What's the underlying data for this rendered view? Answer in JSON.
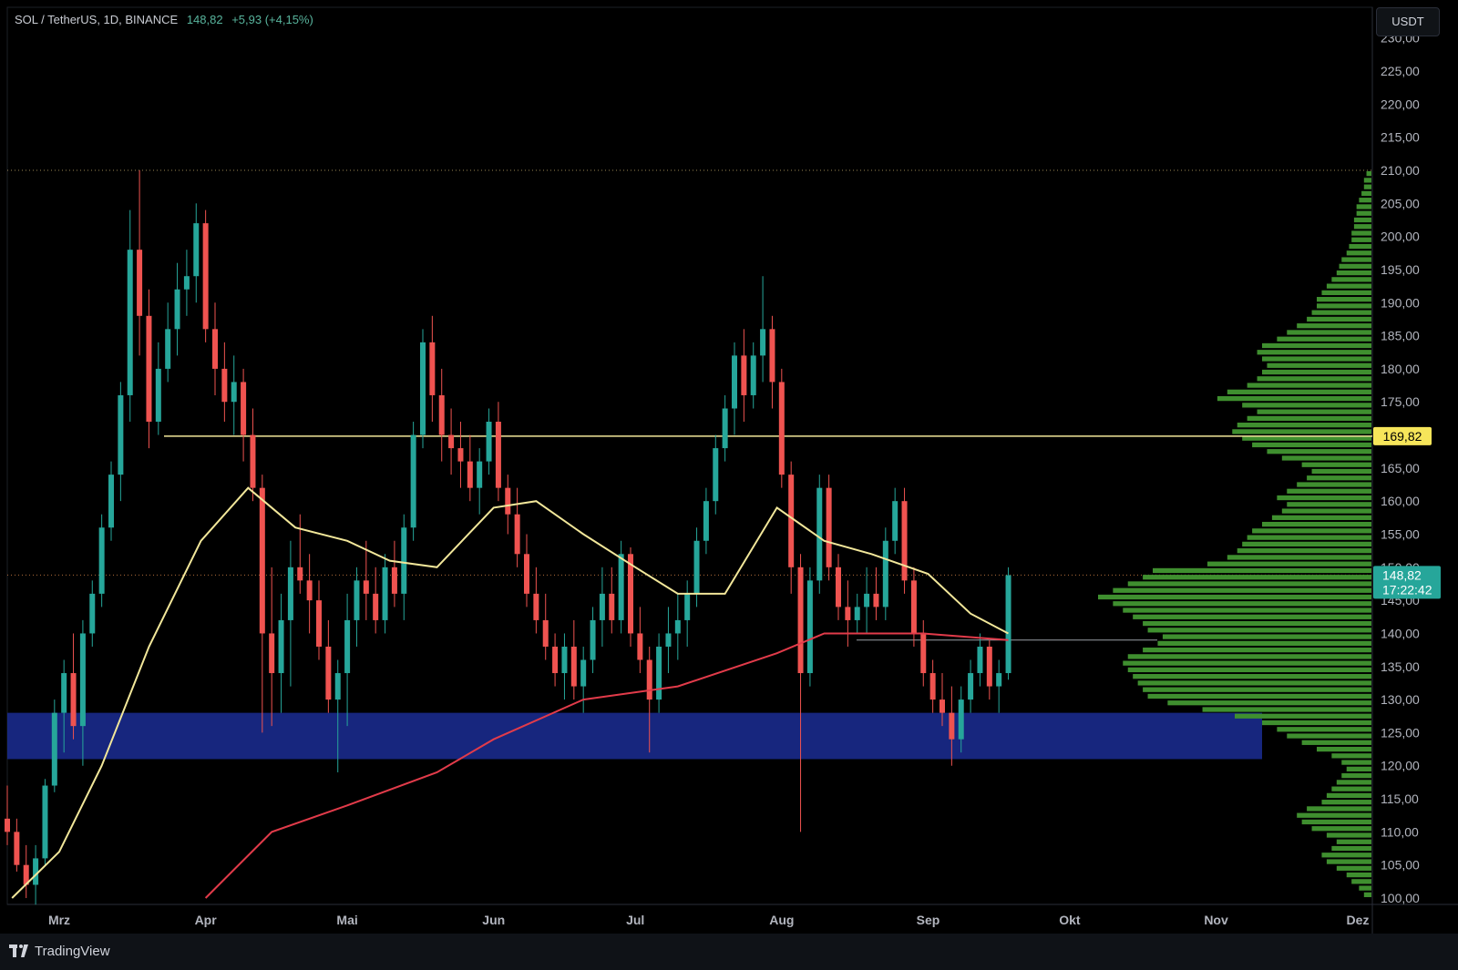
{
  "header": {
    "symbol": "SOL / TetherUS, 1D, BINANCE",
    "last": "148,82",
    "change": "+5,93 (+4,15%)"
  },
  "currency_button": "USDT",
  "footer": {
    "brand": "TradingView"
  },
  "colors": {
    "up": "#26a69a",
    "down": "#ef5350",
    "ma_fast": "#f2e79a",
    "ma_slow": "#e23b4a",
    "zone": "#1a2a8c",
    "volume_profile": "#3f8f2f",
    "level_line": "#f2e79a",
    "price_tag": "#26a69a",
    "level_tag": "#f6e55a"
  },
  "chart_data": {
    "type": "candlestick",
    "y_ticks": [
      "100,00",
      "105,00",
      "110,00",
      "115,00",
      "120,00",
      "125,00",
      "130,00",
      "135,00",
      "140,00",
      "145,00",
      "150,00",
      "155,00",
      "160,00",
      "165,00",
      "170,00",
      "175,00",
      "180,00",
      "185,00",
      "190,00",
      "195,00",
      "200,00",
      "205,00",
      "210,00",
      "215,00",
      "220,00",
      "225,00",
      "230,00"
    ],
    "y_range": [
      100,
      230
    ],
    "x_labels": [
      "Mrz",
      "Apr",
      "Mai",
      "Jun",
      "Jul",
      "Aug",
      "Sep",
      "Okt",
      "Nov",
      "Dez"
    ],
    "x_range": [
      "2024-02-19",
      "2024-12-01"
    ],
    "current_price": {
      "value": 148.82,
      "label": "148,82",
      "countdown": "17:22:42"
    },
    "level_line": {
      "value": 169.82,
      "label": "169,82"
    },
    "support_zone": {
      "from": 121,
      "to": 128
    },
    "moving_averages": [
      {
        "points": [
          [
            "2024-02-20",
            100
          ],
          [
            "2024-03-01",
            107
          ],
          [
            "2024-03-10",
            120
          ],
          [
            "2024-03-20",
            138
          ],
          [
            "2024-03-31",
            154
          ],
          [
            "2024-04-10",
            162
          ],
          [
            "2024-04-20",
            156
          ],
          [
            "2024-05-01",
            154
          ],
          [
            "2024-05-10",
            151
          ],
          [
            "2024-05-20",
            150
          ],
          [
            "2024-06-01",
            159
          ],
          [
            "2024-06-10",
            160
          ],
          [
            "2024-06-20",
            155
          ],
          [
            "2024-07-01",
            150
          ],
          [
            "2024-07-10",
            146
          ],
          [
            "2024-07-20",
            146
          ],
          [
            "2024-07-31",
            159
          ],
          [
            "2024-08-10",
            154
          ],
          [
            "2024-08-20",
            152
          ],
          [
            "2024-09-01",
            149
          ],
          [
            "2024-09-10",
            143
          ],
          [
            "2024-09-18",
            140
          ]
        ]
      },
      {
        "points": [
          [
            "2024-04-01",
            100
          ],
          [
            "2024-04-15",
            110
          ],
          [
            "2024-05-01",
            114
          ],
          [
            "2024-05-20",
            119
          ],
          [
            "2024-06-01",
            124
          ],
          [
            "2024-06-20",
            130
          ],
          [
            "2024-07-10",
            132
          ],
          [
            "2024-07-31",
            137
          ],
          [
            "2024-08-10",
            140
          ],
          [
            "2024-08-31",
            140
          ],
          [
            "2024-09-18",
            139
          ]
        ]
      }
    ],
    "candles": [
      [
        "2024-02-19",
        112,
        117,
        108,
        110
      ],
      [
        "2024-02-21",
        110,
        112,
        104,
        105
      ],
      [
        "2024-02-23",
        105,
        108,
        100,
        102
      ],
      [
        "2024-02-25",
        102,
        108,
        99,
        106
      ],
      [
        "2024-02-27",
        106,
        118,
        105,
        117
      ],
      [
        "2024-02-29",
        117,
        130,
        116,
        128
      ],
      [
        "2024-03-02",
        128,
        136,
        122,
        134
      ],
      [
        "2024-03-04",
        134,
        140,
        124,
        126
      ],
      [
        "2024-03-06",
        126,
        142,
        120,
        140
      ],
      [
        "2024-03-08",
        140,
        148,
        138,
        146
      ],
      [
        "2024-03-10",
        146,
        158,
        144,
        156
      ],
      [
        "2024-03-12",
        156,
        166,
        154,
        164
      ],
      [
        "2024-03-14",
        164,
        178,
        160,
        176
      ],
      [
        "2024-03-16",
        176,
        204,
        172,
        198
      ],
      [
        "2024-03-18",
        198,
        210,
        182,
        188
      ],
      [
        "2024-03-20",
        188,
        192,
        168,
        172
      ],
      [
        "2024-03-22",
        172,
        184,
        170,
        180
      ],
      [
        "2024-03-24",
        180,
        190,
        178,
        186
      ],
      [
        "2024-03-26",
        186,
        196,
        182,
        192
      ],
      [
        "2024-03-28",
        192,
        198,
        188,
        194
      ],
      [
        "2024-03-30",
        194,
        205,
        190,
        202
      ],
      [
        "2024-04-01",
        202,
        204,
        184,
        186
      ],
      [
        "2024-04-03",
        186,
        190,
        176,
        180
      ],
      [
        "2024-04-05",
        180,
        184,
        172,
        175
      ],
      [
        "2024-04-07",
        175,
        182,
        170,
        178
      ],
      [
        "2024-04-09",
        178,
        180,
        166,
        170
      ],
      [
        "2024-04-11",
        170,
        174,
        160,
        162
      ],
      [
        "2024-04-13",
        162,
        164,
        125,
        140
      ],
      [
        "2024-04-15",
        140,
        150,
        126,
        134
      ],
      [
        "2024-04-17",
        134,
        146,
        128,
        142
      ],
      [
        "2024-04-19",
        142,
        154,
        132,
        150
      ],
      [
        "2024-04-21",
        150,
        158,
        146,
        148
      ],
      [
        "2024-04-23",
        148,
        152,
        140,
        145
      ],
      [
        "2024-04-25",
        145,
        148,
        136,
        138
      ],
      [
        "2024-04-27",
        138,
        142,
        128,
        130
      ],
      [
        "2024-04-29",
        130,
        136,
        119,
        134
      ],
      [
        "2024-05-01",
        134,
        146,
        126,
        142
      ],
      [
        "2024-05-03",
        142,
        150,
        138,
        148
      ],
      [
        "2024-05-05",
        148,
        154,
        142,
        146
      ],
      [
        "2024-05-07",
        146,
        150,
        140,
        142
      ],
      [
        "2024-05-09",
        142,
        152,
        140,
        150
      ],
      [
        "2024-05-11",
        150,
        154,
        144,
        146
      ],
      [
        "2024-05-13",
        146,
        158,
        142,
        156
      ],
      [
        "2024-05-15",
        156,
        172,
        154,
        170
      ],
      [
        "2024-05-17",
        170,
        186,
        168,
        184
      ],
      [
        "2024-05-19",
        184,
        188,
        172,
        176
      ],
      [
        "2024-05-21",
        176,
        180,
        166,
        170
      ],
      [
        "2024-05-23",
        170,
        174,
        164,
        168
      ],
      [
        "2024-05-25",
        168,
        172,
        162,
        166
      ],
      [
        "2024-05-27",
        166,
        170,
        160,
        162
      ],
      [
        "2024-05-29",
        162,
        168,
        158,
        166
      ],
      [
        "2024-05-31",
        166,
        174,
        164,
        172
      ],
      [
        "2024-06-02",
        172,
        175,
        160,
        162
      ],
      [
        "2024-06-04",
        162,
        164,
        155,
        158
      ],
      [
        "2024-06-06",
        158,
        162,
        150,
        152
      ],
      [
        "2024-06-08",
        152,
        155,
        144,
        146
      ],
      [
        "2024-06-10",
        146,
        150,
        140,
        142
      ],
      [
        "2024-06-12",
        142,
        146,
        136,
        138
      ],
      [
        "2024-06-14",
        138,
        140,
        132,
        134
      ],
      [
        "2024-06-16",
        134,
        140,
        130,
        138
      ],
      [
        "2024-06-18",
        138,
        142,
        130,
        132
      ],
      [
        "2024-06-20",
        132,
        138,
        128,
        136
      ],
      [
        "2024-06-22",
        136,
        144,
        134,
        142
      ],
      [
        "2024-06-24",
        142,
        150,
        138,
        146
      ],
      [
        "2024-06-26",
        146,
        150,
        140,
        142
      ],
      [
        "2024-06-28",
        142,
        154,
        140,
        152
      ],
      [
        "2024-06-30",
        152,
        153,
        138,
        140
      ],
      [
        "2024-07-02",
        140,
        144,
        134,
        136
      ],
      [
        "2024-07-04",
        136,
        138,
        122,
        130
      ],
      [
        "2024-07-06",
        130,
        140,
        128,
        138
      ],
      [
        "2024-07-08",
        138,
        144,
        134,
        140
      ],
      [
        "2024-07-10",
        140,
        146,
        136,
        142
      ],
      [
        "2024-07-12",
        142,
        148,
        138,
        146
      ],
      [
        "2024-07-14",
        146,
        156,
        144,
        154
      ],
      [
        "2024-07-16",
        154,
        162,
        152,
        160
      ],
      [
        "2024-07-18",
        160,
        170,
        158,
        168
      ],
      [
        "2024-07-20",
        168,
        176,
        166,
        174
      ],
      [
        "2024-07-22",
        174,
        184,
        170,
        182
      ],
      [
        "2024-07-24",
        182,
        186,
        172,
        176
      ],
      [
        "2024-07-26",
        176,
        184,
        174,
        182
      ],
      [
        "2024-07-28",
        182,
        194,
        178,
        186
      ],
      [
        "2024-07-30",
        186,
        188,
        174,
        178
      ],
      [
        "2024-08-01",
        178,
        180,
        162,
        164
      ],
      [
        "2024-08-03",
        164,
        166,
        146,
        150
      ],
      [
        "2024-08-05",
        150,
        152,
        110,
        134
      ],
      [
        "2024-08-07",
        134,
        150,
        132,
        148
      ],
      [
        "2024-08-09",
        148,
        164,
        146,
        162
      ],
      [
        "2024-08-11",
        162,
        164,
        148,
        150
      ],
      [
        "2024-08-13",
        150,
        152,
        142,
        144
      ],
      [
        "2024-08-15",
        144,
        148,
        138,
        142
      ],
      [
        "2024-08-17",
        142,
        146,
        140,
        144
      ],
      [
        "2024-08-19",
        144,
        150,
        140,
        146
      ],
      [
        "2024-08-21",
        146,
        150,
        142,
        144
      ],
      [
        "2024-08-23",
        144,
        156,
        142,
        154
      ],
      [
        "2024-08-25",
        154,
        162,
        152,
        160
      ],
      [
        "2024-08-27",
        160,
        162,
        146,
        148
      ],
      [
        "2024-08-29",
        148,
        150,
        138,
        140
      ],
      [
        "2024-08-31",
        140,
        142,
        132,
        134
      ],
      [
        "2024-09-02",
        134,
        136,
        128,
        130
      ],
      [
        "2024-09-04",
        130,
        134,
        126,
        128
      ],
      [
        "2024-09-06",
        128,
        132,
        120,
        124
      ],
      [
        "2024-09-08",
        124,
        132,
        122,
        130
      ],
      [
        "2024-09-10",
        130,
        136,
        128,
        134
      ],
      [
        "2024-09-12",
        134,
        140,
        132,
        138
      ],
      [
        "2024-09-14",
        138,
        139,
        130,
        132
      ],
      [
        "2024-09-16",
        132,
        136,
        128,
        134
      ],
      [
        "2024-09-18",
        134,
        150,
        133,
        148.8
      ]
    ],
    "volume_profile": [
      [
        100,
        3
      ],
      [
        101,
        5
      ],
      [
        102,
        8
      ],
      [
        103,
        10
      ],
      [
        104,
        14
      ],
      [
        105,
        18
      ],
      [
        106,
        20
      ],
      [
        107,
        16
      ],
      [
        108,
        14
      ],
      [
        109,
        18
      ],
      [
        110,
        24
      ],
      [
        111,
        28
      ],
      [
        112,
        30
      ],
      [
        113,
        26
      ],
      [
        114,
        20
      ],
      [
        115,
        18
      ],
      [
        116,
        16
      ],
      [
        117,
        14
      ],
      [
        118,
        12
      ],
      [
        119,
        10
      ],
      [
        120,
        12
      ],
      [
        121,
        16
      ],
      [
        122,
        22
      ],
      [
        123,
        28
      ],
      [
        124,
        34
      ],
      [
        125,
        38
      ],
      [
        126,
        44
      ],
      [
        127,
        55
      ],
      [
        128,
        68
      ],
      [
        129,
        82
      ],
      [
        130,
        90
      ],
      [
        131,
        92
      ],
      [
        132,
        94
      ],
      [
        133,
        96
      ],
      [
        134,
        98
      ],
      [
        135,
        100
      ],
      [
        136,
        98
      ],
      [
        137,
        92
      ],
      [
        138,
        86
      ],
      [
        139,
        84
      ],
      [
        140,
        90
      ],
      [
        141,
        92
      ],
      [
        142,
        96
      ],
      [
        143,
        100
      ],
      [
        144,
        104
      ],
      [
        145,
        110
      ],
      [
        146,
        104
      ],
      [
        147,
        98
      ],
      [
        148,
        92
      ],
      [
        149,
        88
      ],
      [
        150,
        66
      ],
      [
        151,
        58
      ],
      [
        152,
        54
      ],
      [
        153,
        52
      ],
      [
        154,
        50
      ],
      [
        155,
        48
      ],
      [
        156,
        44
      ],
      [
        157,
        40
      ],
      [
        158,
        36
      ],
      [
        159,
        34
      ],
      [
        160,
        38
      ],
      [
        161,
        34
      ],
      [
        162,
        30
      ],
      [
        163,
        26
      ],
      [
        164,
        24
      ],
      [
        165,
        28
      ],
      [
        166,
        36
      ],
      [
        167,
        42
      ],
      [
        168,
        48
      ],
      [
        169,
        52
      ],
      [
        170,
        56
      ],
      [
        171,
        54
      ],
      [
        172,
        50
      ],
      [
        173,
        46
      ],
      [
        174,
        52
      ],
      [
        175,
        62
      ],
      [
        176,
        58
      ],
      [
        177,
        50
      ],
      [
        178,
        46
      ],
      [
        179,
        44
      ],
      [
        180,
        42
      ],
      [
        181,
        44
      ],
      [
        182,
        46
      ],
      [
        183,
        44
      ],
      [
        184,
        38
      ],
      [
        185,
        34
      ],
      [
        186,
        30
      ],
      [
        187,
        26
      ],
      [
        188,
        24
      ],
      [
        189,
        22
      ],
      [
        190,
        22
      ],
      [
        191,
        20
      ],
      [
        192,
        18
      ],
      [
        193,
        16
      ],
      [
        194,
        14
      ],
      [
        195,
        13
      ],
      [
        196,
        12
      ],
      [
        197,
        10
      ],
      [
        198,
        9
      ],
      [
        199,
        8
      ],
      [
        200,
        8
      ],
      [
        201,
        7
      ],
      [
        202,
        7
      ],
      [
        203,
        6
      ],
      [
        204,
        6
      ],
      [
        205,
        5
      ],
      [
        206,
        4
      ],
      [
        207,
        3
      ],
      [
        208,
        3
      ],
      [
        209,
        2
      ]
    ]
  }
}
